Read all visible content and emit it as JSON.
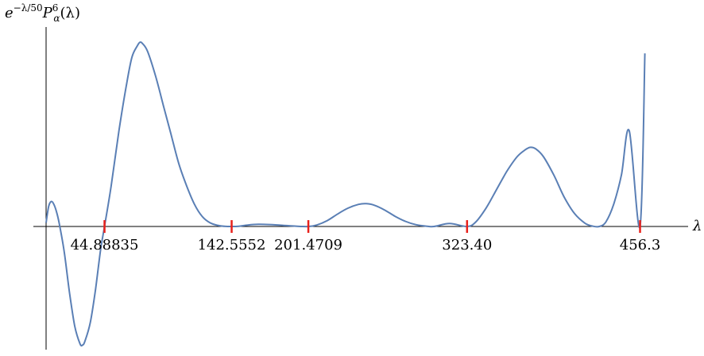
{
  "chart_data": {
    "type": "line",
    "ylabel": {
      "prefix": "e",
      "exponent": "−λ/50",
      "symbol": "P",
      "subscript": "α",
      "superscript": "6",
      "argument": "(λ)"
    },
    "xlabel": "λ",
    "xlim": [
      0,
      492
    ],
    "ylim": [
      -0.33,
      0.52
    ],
    "grid": false,
    "colors": {
      "curve": "#5a7fb5",
      "marker": "#e8211b",
      "axis": "#000000"
    },
    "markers": [
      {
        "x": 44.88835,
        "label": "44.88835"
      },
      {
        "x": 142.5552,
        "label": "142.5552"
      },
      {
        "x": 201.4709,
        "label": "201.4709"
      },
      {
        "x": 323.4,
        "label": "323.40"
      },
      {
        "x": 456.3,
        "label": "456.3"
      }
    ],
    "series": [
      {
        "points": [
          [
            0,
            0.01
          ],
          [
            2,
            0.055
          ],
          [
            4,
            0.068
          ],
          [
            6,
            0.06
          ],
          [
            8,
            0.04
          ],
          [
            10,
            0.01
          ],
          [
            14,
            -0.07
          ],
          [
            18,
            -0.18
          ],
          [
            22,
            -0.27
          ],
          [
            26,
            -0.318
          ],
          [
            28,
            -0.322
          ],
          [
            30,
            -0.31
          ],
          [
            34,
            -0.26
          ],
          [
            38,
            -0.17
          ],
          [
            42,
            -0.06
          ],
          [
            44.88835,
            0.0
          ],
          [
            50,
            0.11
          ],
          [
            56,
            0.26
          ],
          [
            62,
            0.39
          ],
          [
            66,
            0.46
          ],
          [
            70,
            0.49
          ],
          [
            72,
            0.5
          ],
          [
            74,
            0.497
          ],
          [
            78,
            0.475
          ],
          [
            84,
            0.41
          ],
          [
            90,
            0.33
          ],
          [
            96,
            0.25
          ],
          [
            102,
            0.17
          ],
          [
            108,
            0.11
          ],
          [
            114,
            0.06
          ],
          [
            120,
            0.027
          ],
          [
            126,
            0.01
          ],
          [
            132,
            0.003
          ],
          [
            138,
            0.0003
          ],
          [
            142.5552,
            0.0
          ],
          [
            148,
            0.0007
          ],
          [
            155,
            0.004
          ],
          [
            163,
            0.0058
          ],
          [
            172,
            0.0053
          ],
          [
            182,
            0.0032
          ],
          [
            192,
            0.0009
          ],
          [
            201.4709,
            0.0
          ],
          [
            208,
            0.004
          ],
          [
            216,
            0.016
          ],
          [
            224,
            0.034
          ],
          [
            232,
            0.05
          ],
          [
            240,
            0.06
          ],
          [
            246,
            0.062
          ],
          [
            252,
            0.058
          ],
          [
            260,
            0.045
          ],
          [
            268,
            0.028
          ],
          [
            276,
            0.014
          ],
          [
            284,
            0.005
          ],
          [
            292,
            0.001
          ],
          [
            298,
            0.0
          ],
          [
            310,
            0.008
          ],
          [
            323.4,
            0.0
          ],
          [
            330,
            0.012
          ],
          [
            338,
            0.05
          ],
          [
            346,
            0.1
          ],
          [
            354,
            0.15
          ],
          [
            362,
            0.19
          ],
          [
            368,
            0.208
          ],
          [
            372,
            0.215
          ],
          [
            376,
            0.211
          ],
          [
            382,
            0.19
          ],
          [
            390,
            0.14
          ],
          [
            398,
            0.08
          ],
          [
            406,
            0.035
          ],
          [
            414,
            0.009
          ],
          [
            420,
            0.001
          ],
          [
            425,
            0.0
          ],
          [
            430,
            0.012
          ],
          [
            436,
            0.06
          ],
          [
            442,
            0.14
          ],
          [
            448,
            0.26
          ],
          [
            456.3,
            0.0
          ],
          [
            460,
            0.47
          ]
        ]
      }
    ]
  }
}
